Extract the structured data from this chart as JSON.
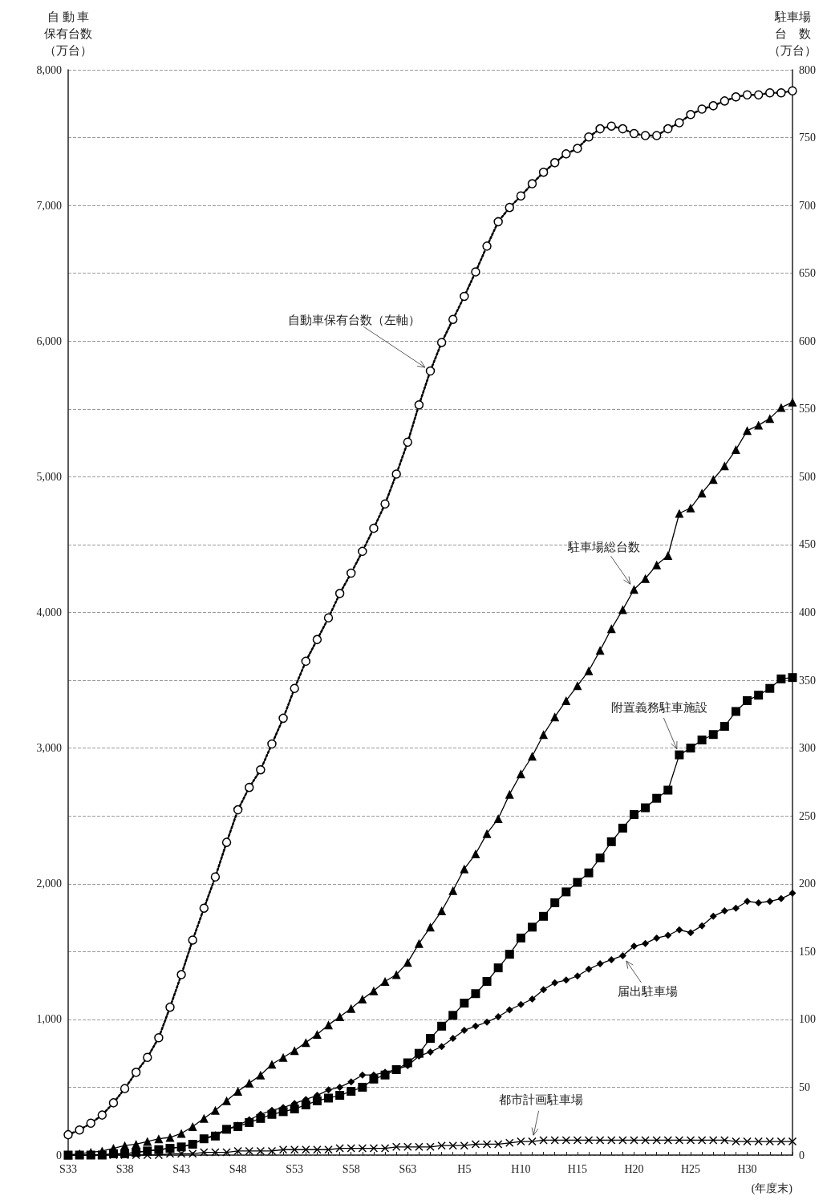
{
  "chart_data": {
    "type": "line",
    "ylabel": "自 動 車保有台数（万台）",
    "y2label": "駐車場台　数（万台）",
    "xlabel": "(年度末)",
    "categories": [
      "S33",
      null,
      null,
      null,
      null,
      "S38",
      null,
      null,
      null,
      null,
      "S43",
      null,
      null,
      null,
      null,
      "S48",
      null,
      null,
      null,
      null,
      "S53",
      null,
      null,
      null,
      null,
      "S58",
      null,
      null,
      null,
      null,
      "S63",
      null,
      null,
      null,
      null,
      "H5",
      null,
      null,
      null,
      null,
      "H10",
      null,
      null,
      null,
      null,
      "H15",
      null,
      null,
      null,
      null,
      "H20",
      null,
      null,
      null,
      null,
      "H25",
      null,
      null,
      null,
      null,
      "H30",
      null,
      null,
      null,
      null
    ],
    "series": [
      {
        "name": "自動車保有台数（左軸）",
        "color": "#000000",
        "marker": "circle",
        "line_style": "dotted",
        "values": [
          150,
          185,
          235,
          295,
          385,
          490,
          610,
          720,
          865,
          1090,
          1330,
          1585,
          1820,
          2050,
          2305,
          2545,
          2710,
          2840,
          3030,
          3220,
          3440,
          3640,
          3800,
          3960,
          4140,
          4290,
          4450,
          4620,
          4800,
          5020,
          5255,
          5530,
          5780,
          5990,
          6160,
          6330,
          6510,
          6700,
          6880,
          6985,
          7070,
          7160,
          7245,
          7315,
          7380,
          7420,
          7505,
          7565,
          7585,
          7565,
          7530,
          7515,
          7515,
          7565,
          7610,
          7670,
          7710,
          7735,
          7770,
          7800,
          7815,
          7815,
          7830,
          7830,
          7845
        ]
      },
      {
        "name": "駐車場総台数",
        "color": "#000000",
        "marker": "triangle",
        "line_style": "solid",
        "axis": "y2",
        "values": [
          0,
          1,
          2,
          3,
          5,
          7,
          8,
          10,
          12,
          13,
          16,
          21,
          27,
          33,
          40,
          47,
          53,
          59,
          67,
          72,
          77,
          83,
          89,
          96,
          102,
          108,
          115,
          121,
          128,
          133,
          142,
          156,
          168,
          180,
          195,
          211,
          222,
          237,
          248,
          266,
          281,
          294,
          310,
          323,
          335,
          346,
          357,
          372,
          388,
          402,
          417,
          425,
          435,
          442,
          473,
          477,
          488,
          498,
          508,
          520,
          534,
          538,
          543,
          551,
          555
        ]
      },
      {
        "name": "附置義務駐車施設",
        "color": "#000000",
        "marker": "square",
        "line_style": "solid",
        "axis": "y2",
        "values": [
          0,
          0,
          0,
          0,
          1,
          1,
          2,
          3,
          4,
          5,
          6,
          8,
          12,
          14,
          19,
          21,
          24,
          27,
          30,
          32,
          34,
          37,
          40,
          42,
          44,
          47,
          50,
          56,
          59,
          63,
          68,
          75,
          86,
          95,
          103,
          112,
          119,
          128,
          138,
          148,
          160,
          168,
          176,
          186,
          194,
          201,
          208,
          219,
          231,
          241,
          251,
          256,
          263,
          269,
          295,
          300,
          306,
          310,
          316,
          327,
          335,
          339,
          344,
          351,
          352
        ]
      },
      {
        "name": "届出駐車場",
        "color": "#000000",
        "marker": "diamond",
        "line_style": "solid",
        "axis": "y2",
        "values": [
          0,
          0,
          0,
          0,
          1,
          1,
          2,
          3,
          4,
          5,
          6,
          8,
          12,
          15,
          19,
          22,
          26,
          30,
          33,
          35,
          38,
          41,
          44,
          48,
          50,
          54,
          59,
          59,
          61,
          63,
          66,
          73,
          76,
          80,
          86,
          92,
          95,
          98,
          102,
          107,
          111,
          115,
          122,
          127,
          129,
          132,
          137,
          141,
          144,
          147,
          154,
          156,
          160,
          162,
          166,
          164,
          169,
          176,
          180,
          182,
          187,
          186,
          187,
          189,
          193
        ]
      },
      {
        "name": "都市計画駐車場",
        "color": "#000000",
        "marker": "cross",
        "line_style": "solid",
        "axis": "y2",
        "values": [
          0,
          0,
          0,
          0,
          0,
          0,
          0,
          0,
          0,
          1,
          1,
          1,
          2,
          2,
          2,
          3,
          3,
          3,
          3,
          4,
          4,
          4,
          4,
          4,
          5,
          5,
          5,
          5,
          5,
          6,
          6,
          6,
          6,
          7,
          7,
          7,
          8,
          8,
          8,
          9,
          10,
          10,
          11,
          11,
          11,
          11,
          11,
          11,
          11,
          11,
          11,
          11,
          11,
          11,
          11,
          11,
          11,
          11,
          11,
          10,
          10,
          10,
          10,
          10,
          10
        ]
      }
    ],
    "ylim": [
      0,
      8000
    ],
    "yticks": [
      {
        "value": 0,
        "label": "0"
      },
      {
        "value": 1000,
        "label": "1,000"
      },
      {
        "value": 2000,
        "label": "2,000"
      },
      {
        "value": 3000,
        "label": "3,000"
      },
      {
        "value": 4000,
        "label": "4,000"
      },
      {
        "value": 5000,
        "label": "5,000"
      },
      {
        "value": 6000,
        "label": "6,000"
      },
      {
        "value": 7000,
        "label": "7,000"
      },
      {
        "value": 8000,
        "label": "8,000"
      }
    ],
    "y2lim": [
      0,
      800
    ],
    "y2ticks": [
      0,
      50,
      100,
      150,
      200,
      250,
      300,
      350,
      400,
      450,
      500,
      550,
      600,
      650,
      700,
      750,
      800
    ],
    "grid": "y",
    "legend": false
  }
}
